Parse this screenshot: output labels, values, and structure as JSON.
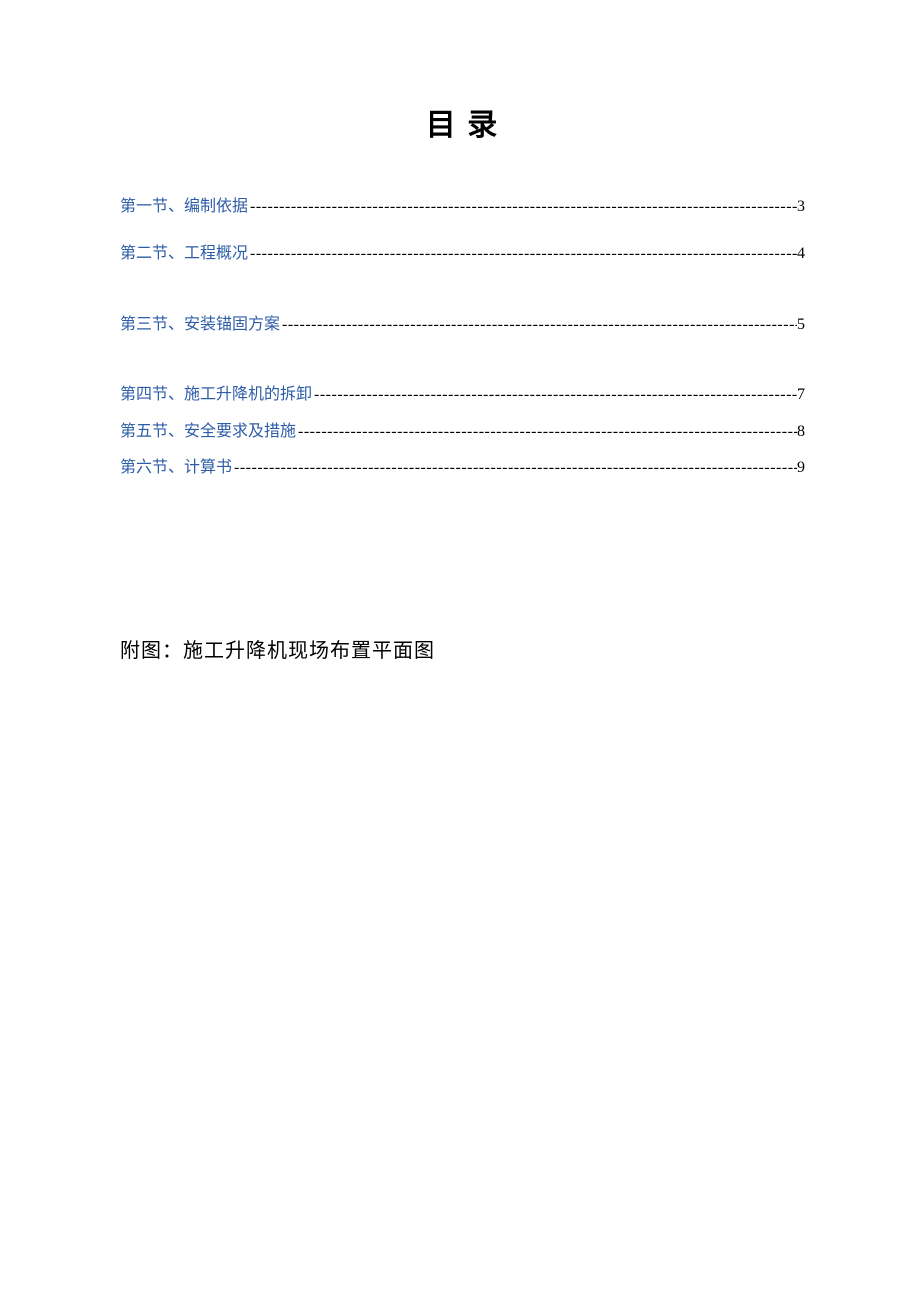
{
  "page": {
    "title": "目 录",
    "appendix": "附图：施工升降机现场布置平面图"
  },
  "toc": {
    "link_color": "#2e5da8",
    "text_color": "#000000",
    "title_fontsize": 30,
    "entry_fontsize": 16,
    "appendix_fontsize": 20,
    "background_color": "#ffffff",
    "entries": [
      {
        "label": "第一节、编制依据",
        "page": "3",
        "margin_bottom": 25
      },
      {
        "label": "第二节、工程概况",
        "page": "4",
        "margin_bottom": 48
      },
      {
        "label": "第三节、安装锚固方案",
        "page": "5",
        "margin_bottom": 48
      },
      {
        "label": "第四节、施工升降机的拆卸",
        "page": "7",
        "margin_bottom": 14
      },
      {
        "label": "第五节、安全要求及措施",
        "page": "8",
        "margin_bottom": 14
      },
      {
        "label": "第六节、计算书",
        "page": "9",
        "margin_bottom": 14
      }
    ]
  }
}
